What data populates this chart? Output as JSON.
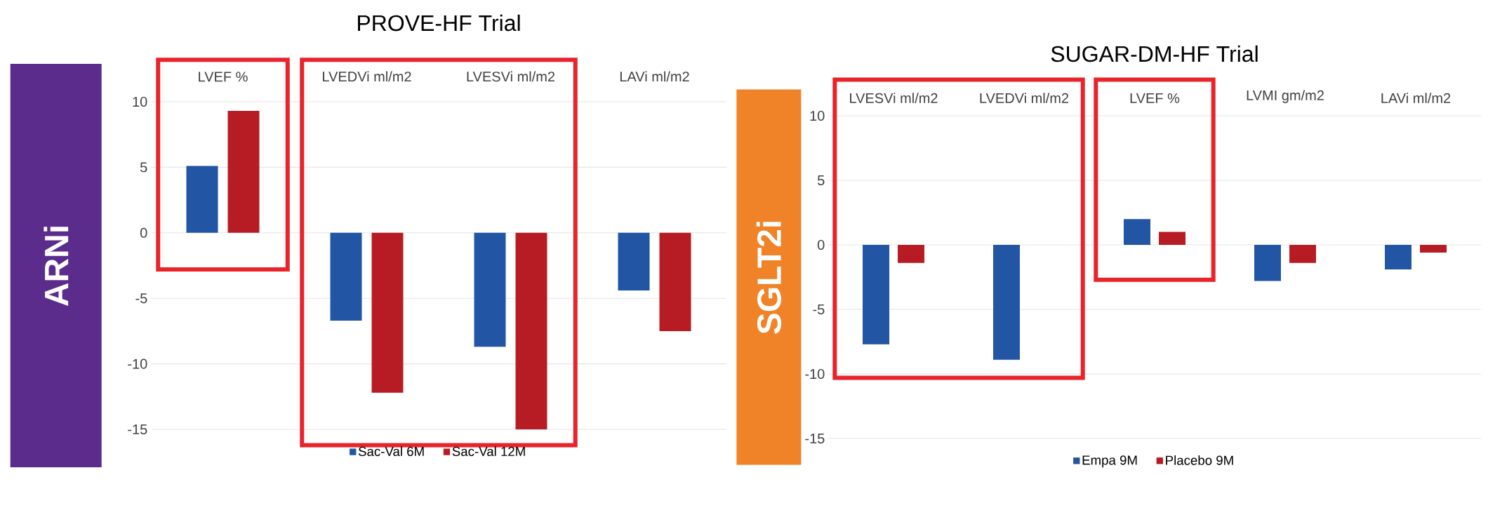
{
  "chart_data": [
    {
      "type": "bar",
      "title": "PROVE-HF Trial",
      "ylabel": "ARNi",
      "categories": [
        "LVEF %",
        "LVEDVi ml/m2",
        "LVESVi ml/m2",
        "LAVi ml/m2"
      ],
      "series": [
        {
          "name": "Sac-Val 6M",
          "color": "#2255a4",
          "values": [
            5.1,
            -6.7,
            -8.7,
            -4.4
          ]
        },
        {
          "name": "Sac-Val 12M",
          "color": "#b71c24",
          "values": [
            9.3,
            -12.2,
            -15.0,
            -7.5
          ]
        }
      ],
      "ylim": [
        -15,
        10
      ],
      "yticks": [
        -15,
        -10,
        -5,
        0,
        5,
        10
      ],
      "grid": "y",
      "legend": "bottom"
    },
    {
      "type": "bar",
      "title": "SUGAR-DM-HF Trial",
      "ylabel": "SGLT2i",
      "categories": [
        "LVESVi ml/m2",
        "LVEDVi ml/m2",
        "LVEF %",
        "LVMI gm/m2",
        "LAVi ml/m2"
      ],
      "series": [
        {
          "name": "Empa 9M",
          "color": "#2255a4",
          "values": [
            -7.7,
            -8.9,
            2.0,
            -2.8,
            -1.9
          ]
        },
        {
          "name": "Placebo 9M",
          "color": "#b71c24",
          "values": [
            -1.4,
            null,
            1.0,
            -1.4,
            -0.6
          ]
        }
      ],
      "ylim": [
        -15,
        10
      ],
      "yticks": [
        -15,
        -10,
        -5,
        0,
        5,
        10
      ],
      "grid": "y",
      "legend": "bottom"
    }
  ]
}
